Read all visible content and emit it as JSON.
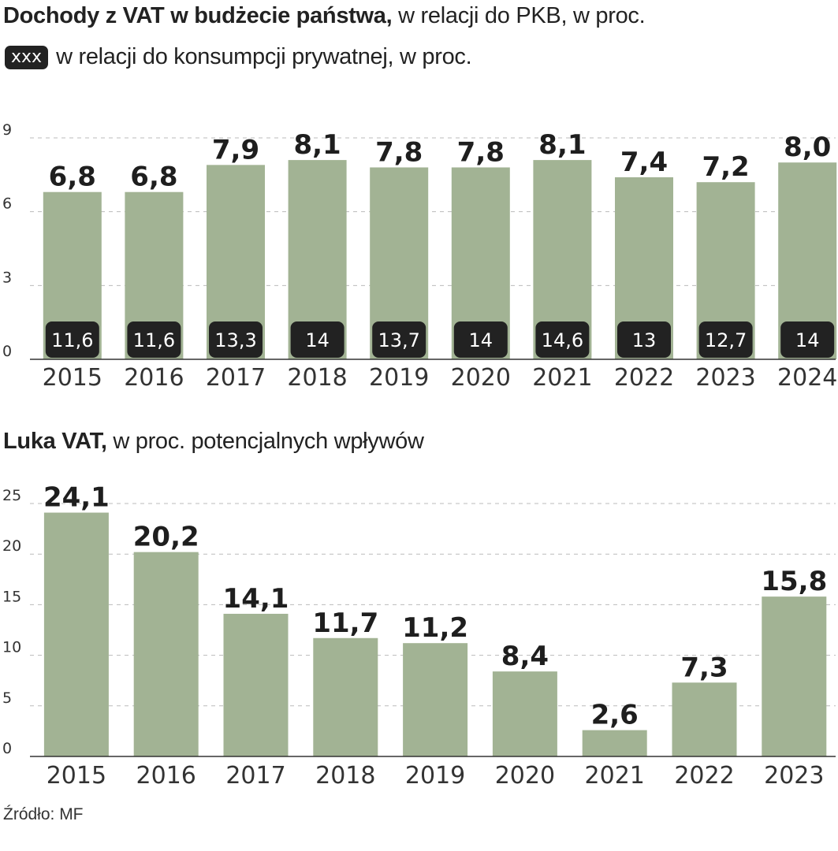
{
  "titles": {
    "chart1_bold": "Dochody z VAT w budżecie państwa,",
    "chart1_rest": " w relacji do PKB, w proc.",
    "legend_swatch": "xxx",
    "legend_text": "w relacji do konsumpcji prywatnej, w proc.",
    "chart2_bold": "Luka VAT,",
    "chart2_rest": " w proc. potencjalnych wpływów",
    "source": "Źródło: MF"
  },
  "colors": {
    "bar": "#a2b394",
    "badge": "#222222",
    "grid": "#bbbbbb",
    "axis": "#333333"
  },
  "chart_data": [
    {
      "type": "bar",
      "title": "Dochody z VAT w budżecie państwa, w relacji do PKB, w proc.",
      "categories": [
        "2015",
        "2016",
        "2017",
        "2018",
        "2019",
        "2020",
        "2021",
        "2022",
        "2023",
        "2024"
      ],
      "series": [
        {
          "name": "w relacji do PKB, w proc.",
          "values": [
            6.8,
            6.8,
            7.9,
            8.1,
            7.8,
            7.8,
            8.1,
            7.4,
            7.2,
            8.0
          ],
          "labels": [
            "6,8",
            "6,8",
            "7,9",
            "8,1",
            "7,8",
            "7,8",
            "8,1",
            "7,4",
            "7,2",
            "8,0"
          ]
        },
        {
          "name": "w relacji do konsumpcji prywatnej, w proc.",
          "values": [
            11.6,
            11.6,
            13.3,
            14,
            13.7,
            14,
            14.6,
            13,
            12.7,
            14
          ],
          "labels": [
            "11,6",
            "11,6",
            "13,3",
            "14",
            "13,7",
            "14",
            "14,6",
            "13",
            "12,7",
            "14"
          ]
        }
      ],
      "yticks": [
        0,
        3,
        6,
        9
      ],
      "ytick_labels": [
        "0",
        "3",
        "6",
        "9"
      ],
      "ylim": [
        0,
        9
      ],
      "grid": true,
      "xlabel": "",
      "ylabel": ""
    },
    {
      "type": "bar",
      "title": "Luka VAT, w proc. potencjalnych wpływów",
      "categories": [
        "2015",
        "2016",
        "2017",
        "2018",
        "2019",
        "2020",
        "2021",
        "2022",
        "2023"
      ],
      "values": [
        24.1,
        20.2,
        14.1,
        11.7,
        11.2,
        8.4,
        2.6,
        7.3,
        15.8
      ],
      "labels": [
        "24,1",
        "20,2",
        "14,1",
        "11,7",
        "11,2",
        "8,4",
        "2,6",
        "7,3",
        "15,8"
      ],
      "yticks": [
        0,
        5,
        10,
        15,
        20,
        25
      ],
      "ytick_labels": [
        "0",
        "5",
        "10",
        "15",
        "20",
        "25"
      ],
      "ylim": [
        0,
        25
      ],
      "grid": true,
      "xlabel": "",
      "ylabel": ""
    }
  ]
}
